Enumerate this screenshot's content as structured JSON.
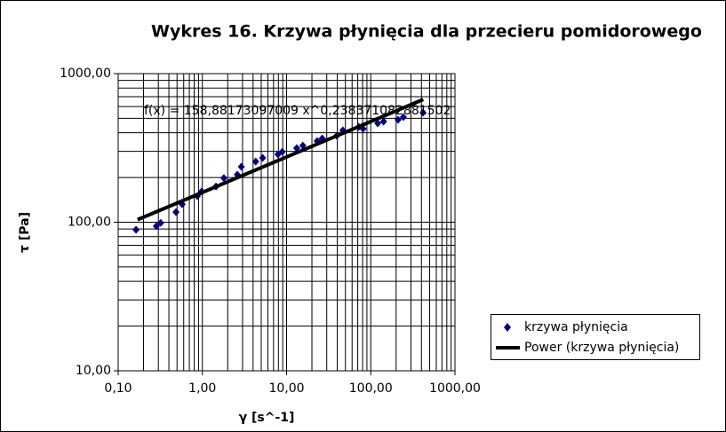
{
  "chart_data": {
    "type": "scatter",
    "title": "Wykres 16. Krzywa płynięcia dla przecieru pomidorowego",
    "x_label": "γ [s^-1]",
    "y_label": "τ [Pa]",
    "annotation": "f(x) = 158,88173097009 x^0,238371082881502",
    "log_x": true,
    "log_y": true,
    "grid": true,
    "legend": "right",
    "xlim": [
      0.1,
      1000
    ],
    "ylim": [
      10,
      1000
    ],
    "xticks": [
      {
        "value": 0.1,
        "label": "0,10"
      },
      {
        "value": 1,
        "label": "1,00"
      },
      {
        "value": 10,
        "label": "10,00"
      },
      {
        "value": 100,
        "label": "100,00"
      },
      {
        "value": 1000,
        "label": "1000,00"
      }
    ],
    "yticks": [
      {
        "value": 10,
        "label": "10,00"
      },
      {
        "value": 100,
        "label": "100,00"
      },
      {
        "value": 1000,
        "label": "1000,00"
      }
    ],
    "xminor": [
      0.2,
      0.3,
      0.4,
      0.5,
      0.6,
      0.7,
      0.8,
      0.9,
      2,
      3,
      4,
      5,
      6,
      7,
      8,
      9,
      20,
      30,
      40,
      50,
      60,
      70,
      80,
      90,
      200,
      300,
      400,
      500,
      600,
      700,
      800,
      900
    ],
    "yminor": [
      20,
      30,
      40,
      50,
      60,
      70,
      80,
      90,
      200,
      300,
      400,
      500,
      600,
      700,
      800,
      900
    ],
    "series": [
      {
        "name": "krzywa płynięcia",
        "color": "#000080",
        "kind": "points",
        "x": [
          0.163,
          0.284,
          0.32,
          0.486,
          0.575,
          0.87,
          0.98,
          1.45,
          1.8,
          2.6,
          2.9,
          4.3,
          5.2,
          7.9,
          8.9,
          13.2,
          15.6,
          23.1,
          26.5,
          39.4,
          46.6,
          72,
          81,
          121,
          142,
          211,
          244,
          417
        ],
        "values": [
          89,
          94,
          99,
          117,
          132,
          150,
          161,
          174,
          198,
          209,
          236,
          256,
          271,
          286,
          298,
          315,
          328,
          352,
          366,
          382,
          415,
          438,
          426,
          463,
          476,
          489,
          510,
          546
        ]
      },
      {
        "name": "Power (krzywa płynięcia)",
        "color": "#000000",
        "kind": "line",
        "x": [
          0.17,
          420
        ],
        "values": [
          104,
          670
        ]
      }
    ]
  }
}
